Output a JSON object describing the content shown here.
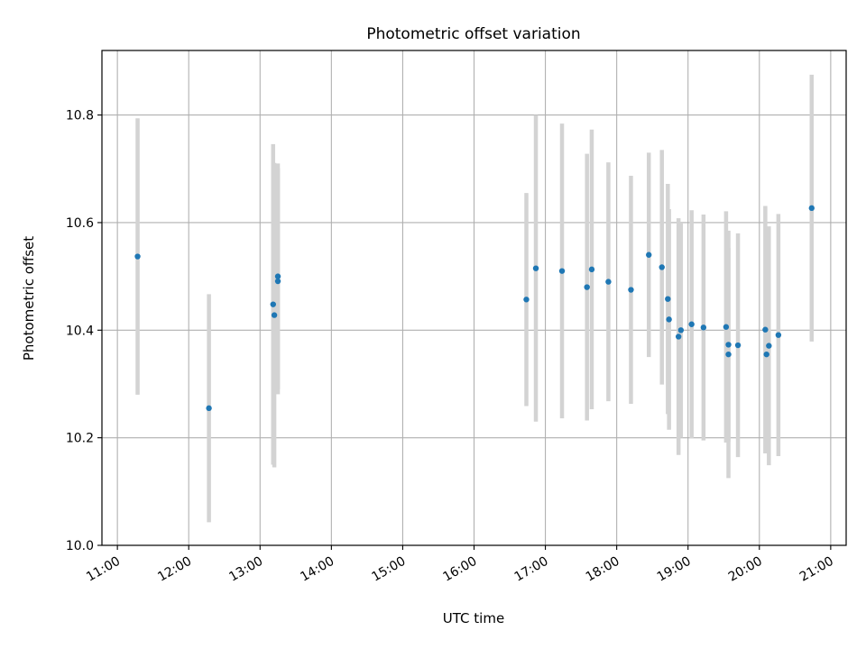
{
  "chart_data": {
    "type": "scatter",
    "title": "Photometric offset variation",
    "xlabel": "UTC time",
    "ylabel": "Photometric offset",
    "x_ticks": [
      "11:00",
      "12:00",
      "13:00",
      "14:00",
      "15:00",
      "16:00",
      "17:00",
      "18:00",
      "19:00",
      "20:00",
      "21:00"
    ],
    "y_ticks": [
      "10.0",
      "10.2",
      "10.4",
      "10.6",
      "10.8"
    ],
    "xlim": [
      "10:47",
      "21:13"
    ],
    "ylim": [
      10.0,
      10.92
    ],
    "grid": true,
    "colors": {
      "marker": "#1f77b4",
      "errorbar": "#d3d3d3",
      "grid": "#b0b0b0"
    },
    "series": [
      {
        "points": [
          {
            "x": "11:17",
            "y": 10.537,
            "err": 0.257
          },
          {
            "x": "12:17",
            "y": 10.255,
            "err": 0.212
          },
          {
            "x": "13:11",
            "y": 10.448,
            "err": 0.298
          },
          {
            "x": "13:12",
            "y": 10.428,
            "err": 0.283
          },
          {
            "x": "13:15",
            "y": 10.5,
            "err": 0.21
          },
          {
            "x": "13:15",
            "y": 10.491,
            "err": 0.21
          },
          {
            "x": "16:44",
            "y": 10.457,
            "err": 0.198
          },
          {
            "x": "16:52",
            "y": 10.515,
            "err": 0.285
          },
          {
            "x": "17:14",
            "y": 10.51,
            "err": 0.274
          },
          {
            "x": "17:35",
            "y": 10.48,
            "err": 0.248
          },
          {
            "x": "17:39",
            "y": 10.513,
            "err": 0.26
          },
          {
            "x": "17:53",
            "y": 10.49,
            "err": 0.222
          },
          {
            "x": "18:12",
            "y": 10.475,
            "err": 0.212
          },
          {
            "x": "18:27",
            "y": 10.54,
            "err": 0.19
          },
          {
            "x": "18:38",
            "y": 10.517,
            "err": 0.218
          },
          {
            "x": "18:43",
            "y": 10.458,
            "err": 0.214
          },
          {
            "x": "18:44",
            "y": 10.42,
            "err": 0.205
          },
          {
            "x": "18:52",
            "y": 10.388,
            "err": 0.22
          },
          {
            "x": "18:54",
            "y": 10.4,
            "err": 0.2
          },
          {
            "x": "19:03",
            "y": 10.411,
            "err": 0.212
          },
          {
            "x": "19:13",
            "y": 10.405,
            "err": 0.21
          },
          {
            "x": "19:32",
            "y": 10.406,
            "err": 0.215
          },
          {
            "x": "19:34",
            "y": 10.373,
            "err": 0.18
          },
          {
            "x": "19:34",
            "y": 10.355,
            "err": 0.23
          },
          {
            "x": "19:42",
            "y": 10.372,
            "err": 0.208
          },
          {
            "x": "20:05",
            "y": 10.401,
            "err": 0.23
          },
          {
            "x": "20:06",
            "y": 10.355,
            "err": 0.18
          },
          {
            "x": "20:08",
            "y": 10.371,
            "err": 0.222
          },
          {
            "x": "20:16",
            "y": 10.391,
            "err": 0.225
          },
          {
            "x": "20:44",
            "y": 10.627,
            "err": 0.248
          }
        ]
      }
    ]
  }
}
